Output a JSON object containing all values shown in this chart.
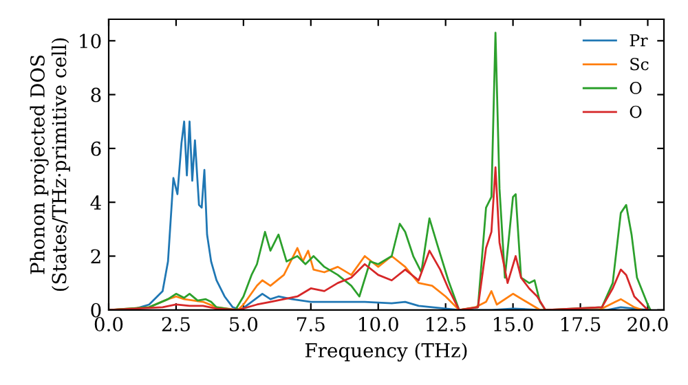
{
  "chart_data": {
    "type": "line",
    "xlabel": "Frequency (THz)",
    "ylabel": "Phonon projected DOS\n(States/THz·primitive cell)",
    "xlim": [
      0,
      20.6
    ],
    "ylim": [
      0,
      10.8
    ],
    "xticks": [
      {
        "value": 0,
        "label": "0.0"
      },
      {
        "value": 2.5,
        "label": "2.5"
      },
      {
        "value": 5,
        "label": "5.0"
      },
      {
        "value": 7.5,
        "label": "7.5"
      },
      {
        "value": 10,
        "label": "10.0"
      },
      {
        "value": 12.5,
        "label": "12.5"
      },
      {
        "value": 15,
        "label": "15.0"
      },
      {
        "value": 17.5,
        "label": "17.5"
      },
      {
        "value": 20,
        "label": "20.0"
      }
    ],
    "yticks": [
      0,
      2,
      4,
      6,
      8,
      10
    ],
    "grid": false,
    "legend": "top right",
    "marker": "none",
    "line_style": "solid",
    "series": [
      {
        "name": "Pr",
        "color": "#1f77b4",
        "x": [
          0,
          1,
          1.5,
          2,
          2.2,
          2.4,
          2.55,
          2.7,
          2.8,
          2.9,
          3.0,
          3.1,
          3.2,
          3.35,
          3.45,
          3.55,
          3.65,
          3.8,
          4.0,
          4.3,
          4.6,
          4.9,
          5.3,
          5.7,
          6.0,
          6.3,
          6.8,
          7.5,
          8.5,
          9.5,
          10.5,
          11,
          11.5,
          12.5,
          13,
          14.2,
          15,
          16,
          18.5,
          19,
          19.5,
          20
        ],
        "values": [
          0,
          0.05,
          0.2,
          0.7,
          1.8,
          4.9,
          4.3,
          6.2,
          7.0,
          5.0,
          7.0,
          4.8,
          6.3,
          3.9,
          3.8,
          5.2,
          2.8,
          1.8,
          1.1,
          0.5,
          0.1,
          0,
          0.3,
          0.6,
          0.4,
          0.5,
          0.4,
          0.3,
          0.3,
          0.3,
          0.25,
          0.3,
          0.15,
          0.05,
          0,
          0,
          0.05,
          0,
          0,
          0.1,
          0.05,
          0
        ]
      },
      {
        "name": "Sc",
        "color": "#ff7f0e",
        "x": [
          0,
          1.5,
          2.2,
          2.5,
          2.8,
          3.5,
          4,
          4.8,
          5,
          5.5,
          5.7,
          6,
          6.5,
          7,
          7.2,
          7.4,
          7.6,
          8,
          8.5,
          9,
          9.5,
          10,
          10.5,
          11,
          11.5,
          12,
          12.5,
          13,
          13.6,
          14,
          14.2,
          14.4,
          15,
          15.5,
          16,
          18.2,
          18.8,
          19,
          19.5,
          19.8
        ],
        "values": [
          0,
          0.1,
          0.4,
          0.5,
          0.4,
          0.3,
          0.1,
          0,
          0.2,
          0.9,
          1.1,
          0.9,
          1.3,
          2.3,
          1.8,
          2.2,
          1.5,
          1.4,
          1.6,
          1.3,
          2.0,
          1.6,
          2.0,
          1.6,
          1.0,
          0.9,
          0.5,
          0,
          0.1,
          0.3,
          0.7,
          0.2,
          0.6,
          0.3,
          0,
          0,
          0.3,
          0.4,
          0.1,
          0
        ]
      },
      {
        "name": "O",
        "color": "#2ca02c",
        "x": [
          0,
          1.5,
          2.2,
          2.5,
          2.8,
          3,
          3.3,
          3.6,
          3.8,
          4,
          4.7,
          5,
          5.3,
          5.5,
          5.8,
          6,
          6.3,
          6.6,
          7,
          7.3,
          7.6,
          8,
          8.5,
          9,
          9.3,
          9.7,
          10,
          10.5,
          10.8,
          11,
          11.3,
          11.6,
          11.9,
          12.2,
          12.6,
          13,
          13.7,
          14,
          14.2,
          14.35,
          14.5,
          14.7,
          15,
          15.1,
          15.3,
          15.6,
          15.8,
          16,
          16.2,
          18.3,
          18.7,
          19,
          19.2,
          19.4,
          19.6,
          20,
          20.1
        ],
        "values": [
          0,
          0.1,
          0.4,
          0.6,
          0.45,
          0.6,
          0.35,
          0.4,
          0.3,
          0.1,
          0,
          0.5,
          1.3,
          1.7,
          2.9,
          2.2,
          2.8,
          1.8,
          2.0,
          1.7,
          2.0,
          1.6,
          1.3,
          0.9,
          0.5,
          1.8,
          1.7,
          2.0,
          3.2,
          2.9,
          2.0,
          1.4,
          3.4,
          2.4,
          1.1,
          0,
          0.1,
          3.8,
          4.2,
          10.3,
          4.5,
          1.2,
          4.2,
          4.3,
          1.2,
          1.0,
          1.1,
          0.3,
          0,
          0.1,
          1.0,
          3.6,
          3.9,
          2.8,
          1.2,
          0.2,
          0
        ]
      },
      {
        "name": "O",
        "color": "#d62728",
        "x": [
          0,
          2,
          2.5,
          3,
          3.5,
          4,
          4.8,
          5.5,
          6,
          6.5,
          7,
          7.5,
          8,
          8.5,
          9,
          9.5,
          10,
          10.5,
          11,
          11.5,
          11.9,
          12.3,
          12.6,
          13,
          13.7,
          14,
          14.2,
          14.35,
          14.5,
          14.8,
          15.1,
          15.3,
          15.6,
          15.9,
          16.2,
          18.3,
          18.7,
          19.0,
          19.2,
          19.5,
          20
        ],
        "values": [
          0,
          0.1,
          0.2,
          0.15,
          0.15,
          0.05,
          0,
          0.2,
          0.3,
          0.4,
          0.5,
          0.8,
          0.7,
          1.0,
          1.2,
          1.7,
          1.3,
          1.1,
          1.5,
          1.1,
          2.2,
          1.5,
          0.8,
          0,
          0.1,
          2.3,
          2.9,
          5.3,
          2.5,
          1.0,
          2.0,
          1.2,
          0.8,
          0.5,
          0,
          0.1,
          0.8,
          1.5,
          1.3,
          0.5,
          0
        ]
      }
    ]
  }
}
